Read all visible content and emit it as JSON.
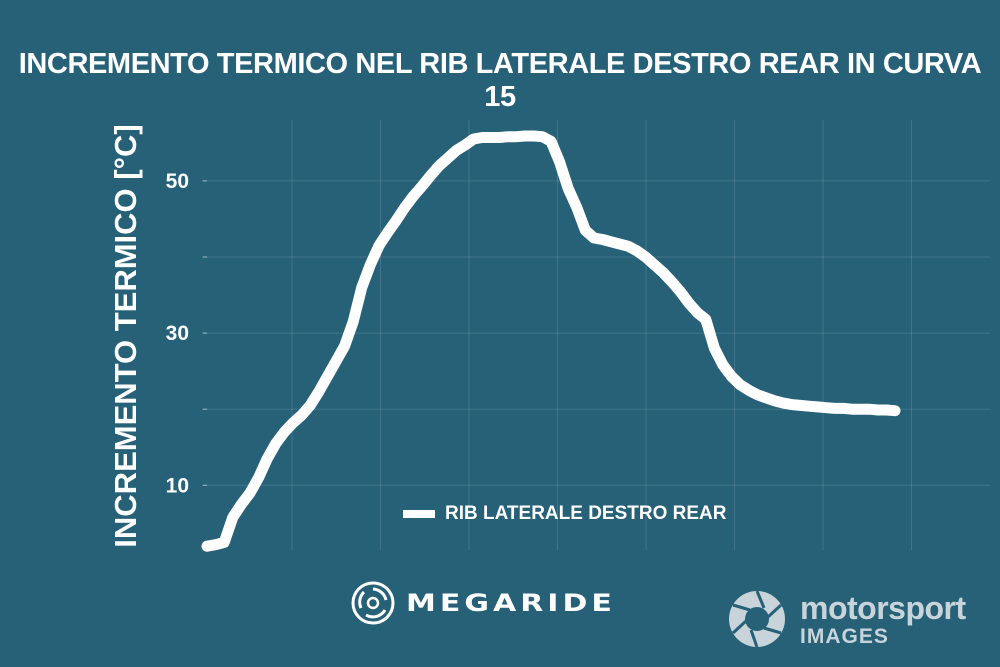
{
  "chart_data": {
    "type": "line",
    "title": "INCREMENTO TERMICO NEL RIB LATERALE DESTRO REAR IN CURVA 15",
    "xlabel": "",
    "ylabel": "INCREMENTO TERMICO [°C]",
    "ylim": [
      1.5,
      58
    ],
    "yticks": [
      10,
      30,
      50
    ],
    "grid": true,
    "legend_position": "bottom-center",
    "series": [
      {
        "name": "RIB LATERALE DESTRO REAR",
        "color": "#ffffff",
        "x": [
          0,
          1,
          2,
          3,
          4,
          5,
          6,
          7,
          8,
          9,
          10,
          11,
          12,
          13,
          14,
          15,
          16,
          17,
          18,
          19,
          20,
          21,
          22,
          23,
          24,
          25,
          26,
          27,
          28,
          29,
          30,
          31,
          32,
          33,
          34,
          35,
          36,
          37,
          38,
          39,
          40,
          41,
          42,
          43,
          44,
          45,
          46,
          47,
          48,
          49,
          50,
          51,
          52,
          53,
          54,
          55,
          56,
          57,
          58,
          59,
          60,
          61,
          62,
          63,
          64,
          65,
          66,
          67,
          68,
          69,
          70,
          71,
          72,
          73,
          74,
          75,
          76,
          77,
          78,
          79,
          80
        ],
        "values": [
          2,
          2.2,
          2.5,
          5.8,
          7.5,
          9,
          11,
          13.5,
          15.5,
          17,
          18.2,
          19.2,
          20.5,
          22.3,
          24.3,
          26.3,
          28.3,
          31.5,
          36,
          39,
          41.5,
          43.2,
          44.8,
          46.5,
          48,
          49.3,
          50.7,
          52,
          53,
          54,
          54.7,
          55.5,
          55.7,
          55.7,
          55.7,
          55.8,
          55.8,
          55.9,
          55.9,
          55.8,
          55.2,
          52.5,
          49,
          46.5,
          43.5,
          42.5,
          42.3,
          42,
          41.7,
          41.4,
          40.8,
          40,
          39,
          38,
          36.8,
          35.5,
          34,
          32.7,
          31.8,
          28,
          25.8,
          24.3,
          23.2,
          22.5,
          21.9,
          21.5,
          21.1,
          20.8,
          20.6,
          20.5,
          20.4,
          20.3,
          20.2,
          20.1,
          20.1,
          20,
          20,
          20,
          19.9,
          19.9,
          19.8
        ]
      }
    ]
  },
  "logos": {
    "megaride": "MEGARIDE",
    "motorsport_brand": "motorsport",
    "motorsport_sub": "IMAGES"
  }
}
